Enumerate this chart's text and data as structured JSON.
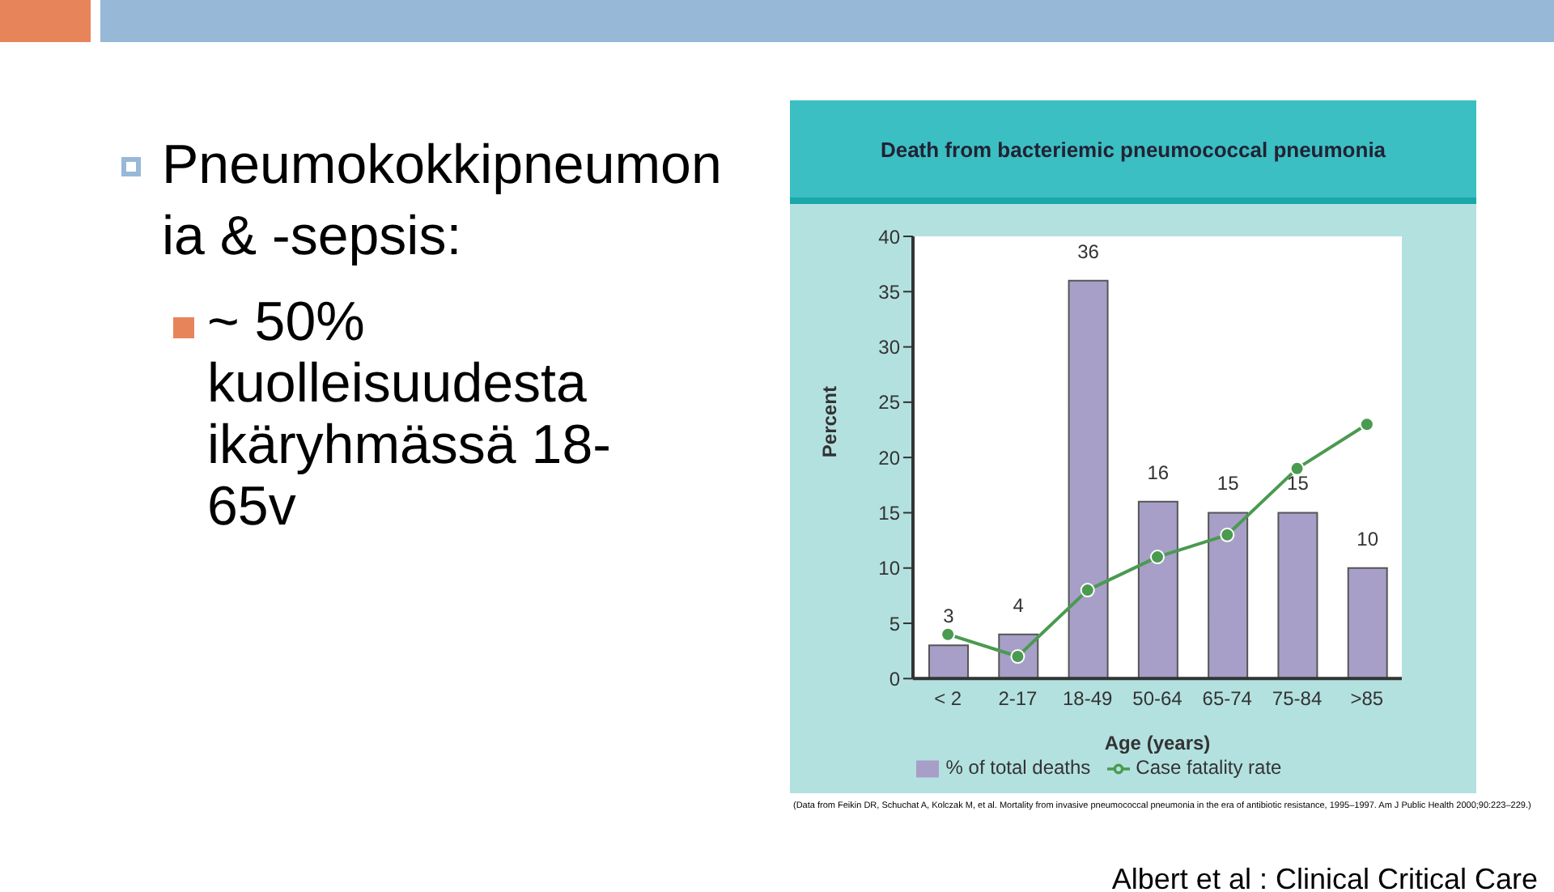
{
  "chart_data": {
    "type": "bar",
    "title": "Death from bacteriemic pneumococcal pneumonia",
    "xlabel": "Age (years)",
    "ylabel": "Percent",
    "categories": [
      "< 2",
      "2-17",
      "18-49",
      "50-64",
      "65-74",
      "75-84",
      ">85"
    ],
    "series": [
      {
        "name": "% of total deaths",
        "color": "#a79fc7",
        "values": [
          3,
          4,
          36,
          16,
          15,
          15,
          10
        ],
        "value_labels": [
          "3",
          "4",
          "36",
          "16",
          "15",
          "15",
          "10"
        ]
      },
      {
        "name": "Case fatality rate",
        "type": "line",
        "color": "#4a9a50",
        "values": [
          4,
          2,
          8,
          11,
          13,
          19,
          23
        ],
        "marker": "circle"
      }
    ],
    "ylim": [
      0,
      40
    ],
    "yticks": [
      0,
      5,
      10,
      15,
      20,
      25,
      30,
      35,
      40
    ],
    "legend": "bottom",
    "annotations": [
      "Pneumokokkipneumonia & -sepsis:",
      "~ 50% kuolleisuudesta ikäryhmässä 18-65v",
      "(Data from Feikin DR, Schuchat A, Kolczak M, et al. Mortality from invasive pneumococcal pneumonia in the era of antibiotic resistance, 1995–1997. Am J Public Health 2000;90:223–229.)",
      "Albert et al : Clinical Critical Care"
    ]
  }
}
